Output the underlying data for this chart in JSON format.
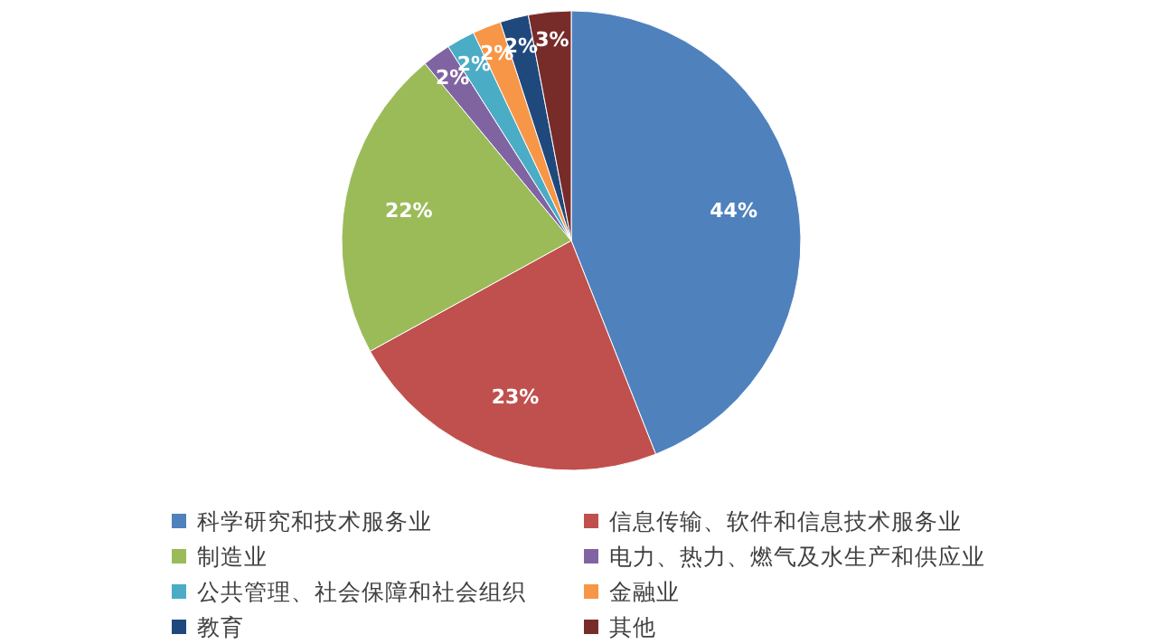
{
  "chart_data": {
    "type": "pie",
    "categories": [
      "科学研究和技术服务业",
      "信息传输、软件和信息技术服务业",
      "制造业",
      "电力、热力、燃气及水生产和供应业",
      "公共管理、社会保障和社会组织",
      "金融业",
      "教育",
      "其他"
    ],
    "values": [
      44,
      23,
      22,
      2,
      2,
      2,
      2,
      3
    ],
    "colors": [
      "#4f81bd",
      "#c0504d",
      "#9bbb59",
      "#8064a2",
      "#4bacc6",
      "#f79646",
      "#1f497d",
      "#772c2a"
    ],
    "value_labels": [
      "44%",
      "23%",
      "22%",
      "2%",
      "2%",
      "2%",
      "2%",
      "3%"
    ],
    "legend": "bottom"
  }
}
